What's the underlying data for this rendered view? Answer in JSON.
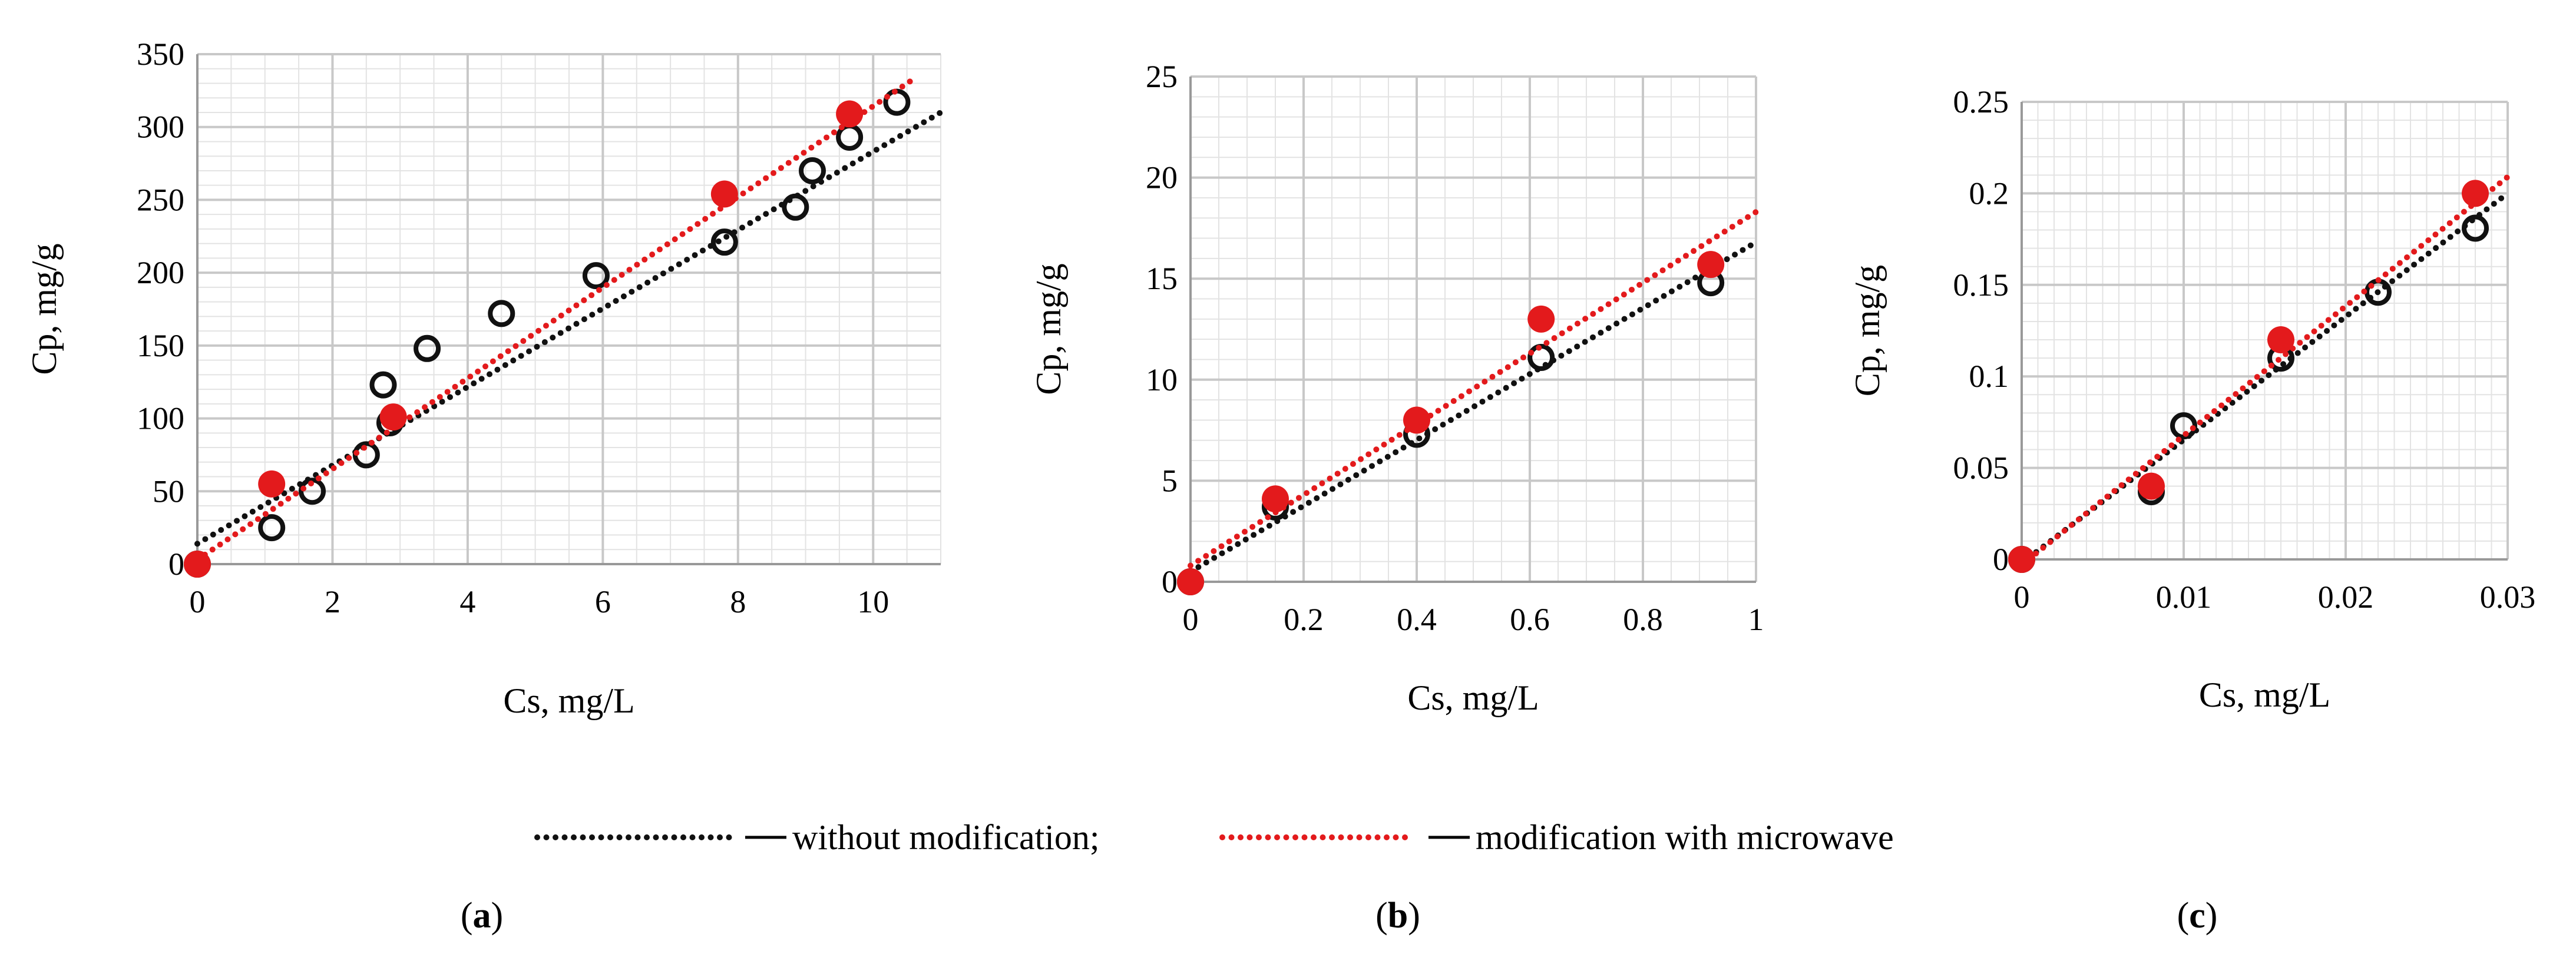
{
  "colors": {
    "without": "#111111",
    "microwave": "#e31a1c",
    "grid_major": "#c8c8c8",
    "grid_minor": "#e3e3e3",
    "axis": "#999999"
  },
  "legend": {
    "without_label": "without modification;",
    "microwave_label": "modification with microwave"
  },
  "chart_data": [
    {
      "id": "a",
      "type": "scatter",
      "panel_label": "a",
      "xlabel": "Cs, mg/L",
      "ylabel": "Cp, mg/g",
      "xlim": [
        0,
        11
      ],
      "ylim": [
        0,
        350
      ],
      "x_ticks": [
        0,
        2,
        4,
        6,
        8,
        10
      ],
      "x_tick_labels": [
        "0",
        "2",
        "4",
        "6",
        "8",
        "10"
      ],
      "y_ticks": [
        0,
        50,
        100,
        150,
        200,
        250,
        300,
        350
      ],
      "y_tick_labels": [
        "0",
        "50",
        "100",
        "150",
        "200",
        "250",
        "300",
        "350"
      ],
      "x_minor": 0.5,
      "y_minor": 10,
      "series": [
        {
          "name": "without modification",
          "marker": "open-circle",
          "points": [
            [
              0,
              0
            ],
            [
              1.1,
              25
            ],
            [
              1.7,
              50
            ],
            [
              2.5,
              75
            ],
            [
              2.75,
              123
            ],
            [
              2.85,
              97
            ],
            [
              3.4,
              148
            ],
            [
              4.5,
              172
            ],
            [
              5.9,
              198
            ],
            [
              7.8,
              221
            ],
            [
              8.85,
              245
            ],
            [
              9.1,
              270
            ],
            [
              9.65,
              293
            ],
            [
              10.35,
              317
            ]
          ],
          "trend": [
            [
              0,
              14
            ],
            [
              11,
              310
            ]
          ]
        },
        {
          "name": "modification with microwave",
          "marker": "filled-circle",
          "points": [
            [
              0,
              0
            ],
            [
              1.1,
              55
            ],
            [
              2.9,
              101
            ],
            [
              7.8,
              254
            ],
            [
              9.65,
              309
            ]
          ],
          "trend": [
            [
              0,
              3
            ],
            [
              10.6,
              333
            ]
          ]
        }
      ]
    },
    {
      "id": "b",
      "type": "scatter",
      "panel_label": "b",
      "xlabel": "Cs, mg/L",
      "ylabel": "Cp, mg/g",
      "xlim": [
        0,
        1
      ],
      "ylim": [
        0,
        25
      ],
      "x_ticks": [
        0,
        0.2,
        0.4,
        0.6,
        0.8,
        1
      ],
      "x_tick_labels": [
        "0",
        "0.2",
        "0.4",
        "0.6",
        "0.8",
        "1"
      ],
      "y_ticks": [
        0,
        5,
        10,
        15,
        20,
        25
      ],
      "y_tick_labels": [
        "0",
        "5",
        "10",
        "15",
        "20",
        "25"
      ],
      "x_minor": 0.05,
      "y_minor": 1,
      "series": [
        {
          "name": "without modification",
          "marker": "open-circle",
          "points": [
            [
              0,
              0
            ],
            [
              0.15,
              3.7
            ],
            [
              0.4,
              7.3
            ],
            [
              0.62,
              11.1
            ],
            [
              0.92,
              14.8
            ]
          ],
          "trend": [
            [
              0,
              0.5
            ],
            [
              1,
              16.8
            ]
          ]
        },
        {
          "name": "modification with microwave",
          "marker": "filled-circle",
          "points": [
            [
              0,
              0
            ],
            [
              0.15,
              4.1
            ],
            [
              0.4,
              8
            ],
            [
              0.62,
              13
            ],
            [
              0.92,
              15.7
            ]
          ],
          "trend": [
            [
              0,
              0.8
            ],
            [
              1,
              18.3
            ]
          ]
        }
      ]
    },
    {
      "id": "c",
      "type": "scatter",
      "panel_label": "c",
      "xlabel": "Cs, mg/L",
      "ylabel": "Cp, mg/g",
      "xlim": [
        0,
        0.03
      ],
      "ylim": [
        0,
        0.25
      ],
      "x_ticks": [
        0,
        0.01,
        0.02,
        0.03
      ],
      "x_tick_labels": [
        "0",
        "0.01",
        "0.02",
        "0.03"
      ],
      "y_ticks": [
        0,
        0.05,
        0.1,
        0.15,
        0.2,
        0.25
      ],
      "y_tick_labels": [
        "0",
        "0.05",
        "0.1",
        "0.15",
        "0.2",
        "0.25"
      ],
      "x_minor": 0.001,
      "y_minor": 0.01,
      "series": [
        {
          "name": "without modification",
          "marker": "open-circle",
          "points": [
            [
              0,
              0
            ],
            [
              0.008,
              0.037
            ],
            [
              0.01,
              0.073
            ],
            [
              0.016,
              0.11
            ],
            [
              0.022,
              0.146
            ],
            [
              0.028,
              0.181
            ]
          ],
          "trend": [
            [
              0,
              -0.002
            ],
            [
              0.03,
              0.2
            ]
          ]
        },
        {
          "name": "modification with microwave",
          "marker": "filled-circle",
          "points": [
            [
              0,
              0
            ],
            [
              0.008,
              0.04
            ],
            [
              0.016,
              0.12
            ],
            [
              0.028,
              0.2
            ]
          ],
          "trend": [
            [
              0,
              -0.003
            ],
            [
              0.03,
              0.209
            ]
          ]
        }
      ]
    }
  ]
}
